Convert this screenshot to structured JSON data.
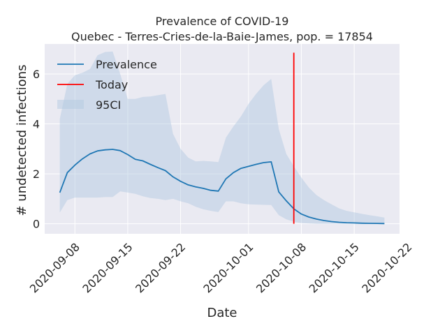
{
  "chart_data": {
    "type": "line",
    "title": "Prevalence of COVID-19",
    "subtitle": "Quebec - Terres-Cries-de-la-Baie-James, pop. = 17854",
    "xlabel": "Date",
    "ylabel": "# undetected infections",
    "x_range": [
      "2020-09-04",
      "2020-10-21"
    ],
    "ylim": [
      -0.4,
      7.2
    ],
    "x_ticks": [
      "2020-09-08",
      "2020-09-15",
      "2020-09-22",
      "2020-10-01",
      "2020-10-08",
      "2020-10-15",
      "2020-10-22"
    ],
    "y_ticks": [
      0,
      2,
      4,
      6
    ],
    "grid": true,
    "legend_position": "top-left",
    "colors": {
      "prevalence": "#1f77b4",
      "today": "#ff0000",
      "ci": "#b0c8e0",
      "plot_bg": "#eaeaf2"
    },
    "series": [
      {
        "name": "Prevalence",
        "x": [
          "2020-09-06",
          "2020-09-07",
          "2020-09-08",
          "2020-09-09",
          "2020-09-10",
          "2020-09-11",
          "2020-09-12",
          "2020-09-13",
          "2020-09-14",
          "2020-09-15",
          "2020-09-16",
          "2020-09-17",
          "2020-09-18",
          "2020-09-19",
          "2020-09-20",
          "2020-09-21",
          "2020-09-22",
          "2020-09-23",
          "2020-09-24",
          "2020-09-25",
          "2020-09-26",
          "2020-09-27",
          "2020-09-28",
          "2020-09-29",
          "2020-09-30",
          "2020-10-01",
          "2020-10-02",
          "2020-10-03",
          "2020-10-04",
          "2020-10-05",
          "2020-10-06",
          "2020-10-07",
          "2020-10-08",
          "2020-10-09",
          "2020-10-10",
          "2020-10-11",
          "2020-10-12",
          "2020-10-13",
          "2020-10-14",
          "2020-10-15",
          "2020-10-16",
          "2020-10-17",
          "2020-10-18",
          "2020-10-19"
        ],
        "values": [
          1.25,
          2.05,
          2.35,
          2.6,
          2.8,
          2.92,
          2.96,
          2.98,
          2.93,
          2.77,
          2.58,
          2.52,
          2.38,
          2.25,
          2.13,
          1.88,
          1.7,
          1.56,
          1.48,
          1.42,
          1.34,
          1.31,
          1.8,
          2.05,
          2.22,
          2.3,
          2.38,
          2.45,
          2.48,
          1.28,
          0.92,
          0.6,
          0.39,
          0.27,
          0.19,
          0.13,
          0.09,
          0.06,
          0.045,
          0.035,
          0.025,
          0.02,
          0.015,
          0.012
        ]
      },
      {
        "name": "95CI",
        "x": [
          "2020-09-06",
          "2020-09-07",
          "2020-09-08",
          "2020-09-09",
          "2020-09-10",
          "2020-09-11",
          "2020-09-12",
          "2020-09-13",
          "2020-09-14",
          "2020-09-15",
          "2020-09-16",
          "2020-09-17",
          "2020-09-18",
          "2020-09-19",
          "2020-09-20",
          "2020-09-21",
          "2020-09-22",
          "2020-09-23",
          "2020-09-24",
          "2020-09-25",
          "2020-09-26",
          "2020-09-27",
          "2020-09-28",
          "2020-09-29",
          "2020-09-30",
          "2020-10-01",
          "2020-10-02",
          "2020-10-03",
          "2020-10-04",
          "2020-10-05",
          "2020-10-06",
          "2020-10-07",
          "2020-10-08",
          "2020-10-09",
          "2020-10-10",
          "2020-10-11",
          "2020-10-12",
          "2020-10-13",
          "2020-10-14",
          "2020-10-15",
          "2020-10-16",
          "2020-10-17",
          "2020-10-18",
          "2020-10-19"
        ],
        "lower": [
          0.45,
          0.95,
          1.05,
          1.05,
          1.05,
          1.05,
          1.07,
          1.07,
          1.3,
          1.25,
          1.2,
          1.1,
          1.03,
          1.0,
          0.95,
          1.0,
          0.9,
          0.82,
          0.68,
          0.58,
          0.52,
          0.47,
          0.9,
          0.9,
          0.82,
          0.78,
          0.77,
          0.76,
          0.75,
          0.35,
          0.18,
          0.08,
          0.03,
          0.01,
          0.0,
          0.0,
          0.0,
          0.0,
          0.0,
          0.0,
          0.0,
          0.0,
          0.0,
          0.0
        ],
        "upper": [
          4.2,
          5.6,
          5.95,
          6.05,
          6.2,
          6.75,
          6.88,
          6.9,
          6.0,
          5.0,
          5.0,
          5.08,
          5.1,
          5.15,
          5.2,
          3.6,
          3.0,
          2.65,
          2.5,
          2.52,
          2.5,
          2.47,
          3.45,
          3.9,
          4.3,
          4.8,
          5.2,
          5.55,
          5.8,
          3.8,
          2.8,
          2.3,
          1.85,
          1.45,
          1.15,
          0.95,
          0.78,
          0.62,
          0.52,
          0.46,
          0.4,
          0.35,
          0.3,
          0.25
        ]
      },
      {
        "name": "Today",
        "x": [
          "2020-10-07",
          "2020-10-07"
        ],
        "values": [
          0,
          6.85
        ]
      }
    ]
  }
}
